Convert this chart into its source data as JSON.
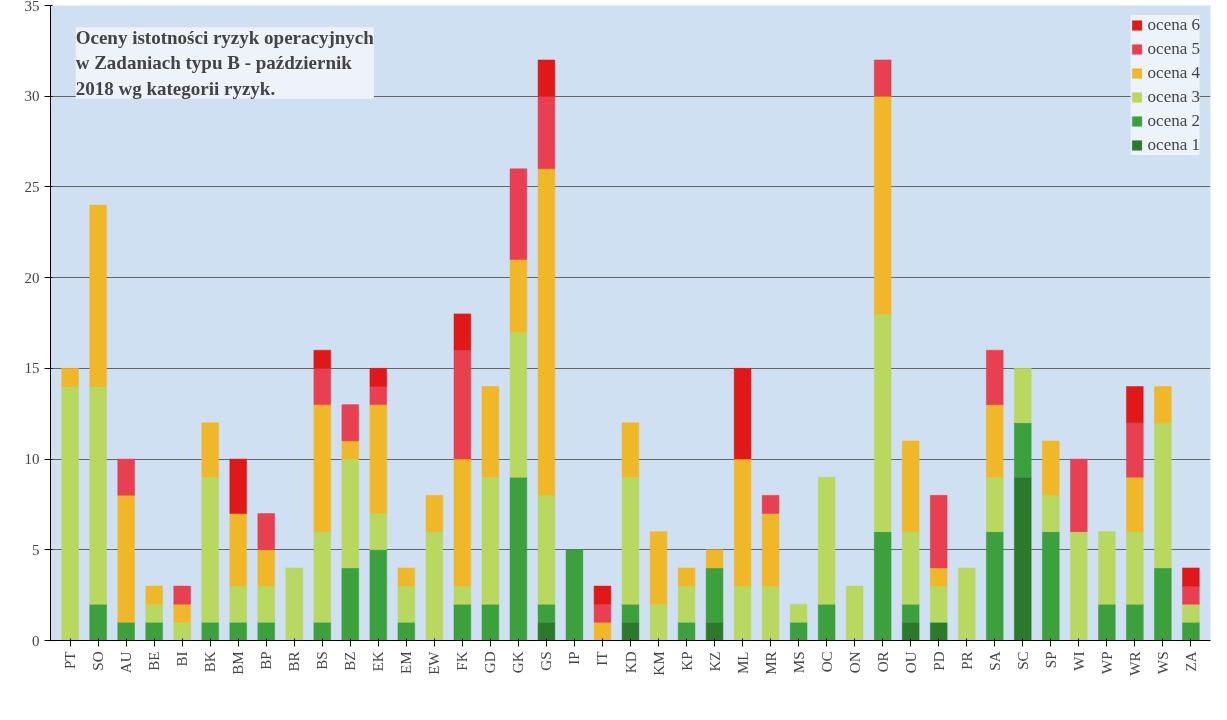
{
  "chart_data": {
    "type": "bar",
    "stacked": true,
    "title": "Oceny istotności ryzyk operacyjnych\nw Zadaniach typu B - październik\n2018  wg kategorii ryzyk.",
    "categories": [
      "PT",
      "SO",
      "AU",
      "BE",
      "BI",
      "BK",
      "BM",
      "BP",
      "BR",
      "BS",
      "BZ",
      "EK",
      "EM",
      "EW",
      "FK",
      "GD",
      "GK",
      "GS",
      "IP",
      "IT",
      "KD",
      "KM",
      "KP",
      "KZ",
      "ML",
      "MR",
      "MS",
      "OC",
      "ON",
      "OR",
      "OU",
      "PD",
      "PR",
      "SA",
      "SC",
      "SP",
      "WI",
      "WP",
      "WR",
      "WS",
      "ZA"
    ],
    "ylim": [
      0,
      35
    ],
    "yticks": [
      0,
      5,
      10,
      15,
      20,
      25,
      30,
      35
    ],
    "grid": "y",
    "legend": "top right",
    "series": [
      {
        "name": "ocena 1",
        "color": "#2a7a2a",
        "values": [
          null,
          null,
          null,
          null,
          null,
          null,
          null,
          null,
          null,
          null,
          null,
          null,
          null,
          null,
          null,
          null,
          null,
          1,
          null,
          null,
          1,
          null,
          null,
          1,
          null,
          null,
          null,
          null,
          null,
          null,
          1,
          1,
          null,
          null,
          9,
          null,
          null,
          null,
          null,
          null,
          null
        ]
      },
      {
        "name": "ocena 2",
        "color": "#3ca03c",
        "values": [
          null,
          2,
          1,
          1,
          null,
          1,
          1,
          1,
          null,
          1,
          4,
          5,
          1,
          null,
          2,
          2,
          9,
          1,
          5,
          null,
          1,
          null,
          1,
          3,
          null,
          null,
          1,
          2,
          null,
          6,
          1,
          null,
          null,
          6,
          3,
          6,
          null,
          2,
          2,
          4,
          1
        ]
      },
      {
        "name": "ocena 3",
        "color": "#b8d860",
        "values": [
          14,
          12,
          null,
          1,
          1,
          8,
          2,
          2,
          4,
          5,
          6,
          2,
          2,
          6,
          1,
          7,
          8,
          6,
          null,
          null,
          7,
          2,
          2,
          null,
          3,
          3,
          1,
          7,
          3,
          12,
          4,
          2,
          4,
          3,
          3,
          2,
          6,
          4,
          4,
          8,
          1
        ]
      },
      {
        "name": "ocena 4",
        "color": "#f0b828",
        "values": [
          1,
          10,
          7,
          1,
          1,
          3,
          4,
          2,
          null,
          7,
          1,
          6,
          1,
          2,
          7,
          5,
          4,
          18,
          null,
          1,
          3,
          4,
          1,
          1,
          7,
          4,
          null,
          null,
          null,
          12,
          5,
          1,
          null,
          4,
          null,
          3,
          null,
          null,
          3,
          2,
          null
        ]
      },
      {
        "name": "ocena 5",
        "color": "#e84050",
        "values": [
          null,
          null,
          2,
          null,
          1,
          null,
          null,
          2,
          null,
          2,
          2,
          1,
          null,
          null,
          6,
          null,
          5,
          4,
          null,
          1,
          null,
          null,
          null,
          null,
          null,
          1,
          null,
          null,
          null,
          2,
          null,
          4,
          null,
          3,
          null,
          null,
          4,
          null,
          3,
          null,
          1
        ]
      },
      {
        "name": "ocena 6",
        "color": "#e01818",
        "values": [
          null,
          null,
          null,
          null,
          null,
          null,
          3,
          null,
          null,
          1,
          null,
          1,
          null,
          null,
          2,
          null,
          null,
          2,
          null,
          1,
          null,
          null,
          null,
          null,
          5,
          null,
          null,
          null,
          null,
          null,
          null,
          null,
          null,
          null,
          null,
          null,
          null,
          null,
          2,
          null,
          1
        ]
      }
    ]
  }
}
